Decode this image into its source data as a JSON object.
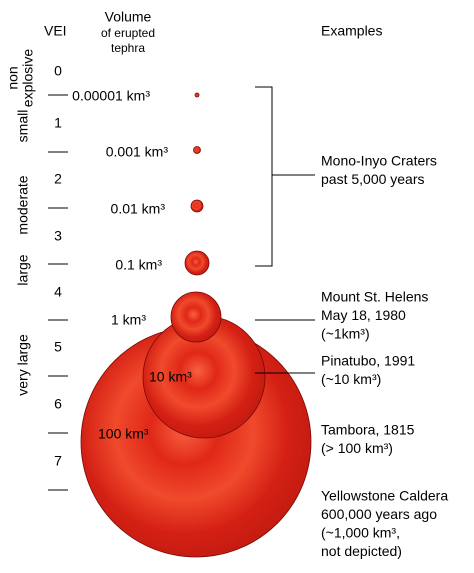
{
  "header": {
    "vei": "VEI",
    "volume": "Volume",
    "volume_sub": [
      "of erupted",
      "tephra"
    ],
    "examples": "Examples"
  },
  "explosivity": {
    "non_explosive": [
      "non",
      "explosive"
    ],
    "small": "small",
    "moderate": "moderate",
    "large": "large",
    "very_large": "very large"
  },
  "vei_levels": [
    "0",
    "1",
    "2",
    "3",
    "4",
    "5",
    "6",
    "7"
  ],
  "volumes": [
    "0.00001 km³",
    "0.001 km³",
    "0.01 km³",
    "0.1 km³",
    "1 km³",
    "10 km³",
    "100 km³"
  ],
  "examples": [
    [
      "Mono-Inyo Craters",
      "past 5,000 years"
    ],
    [
      "Mount St. Helens",
      "May 18, 1980",
      "(~1km³)"
    ],
    [
      "Pinatubo, 1991",
      "(~10 km³)"
    ],
    [
      "Tambora, 1815",
      "(> 100 km³)"
    ],
    [
      "Yellowstone Caldera",
      "600,000 years ago",
      "(~1,000 km³,",
      " not depicted)"
    ]
  ]
}
